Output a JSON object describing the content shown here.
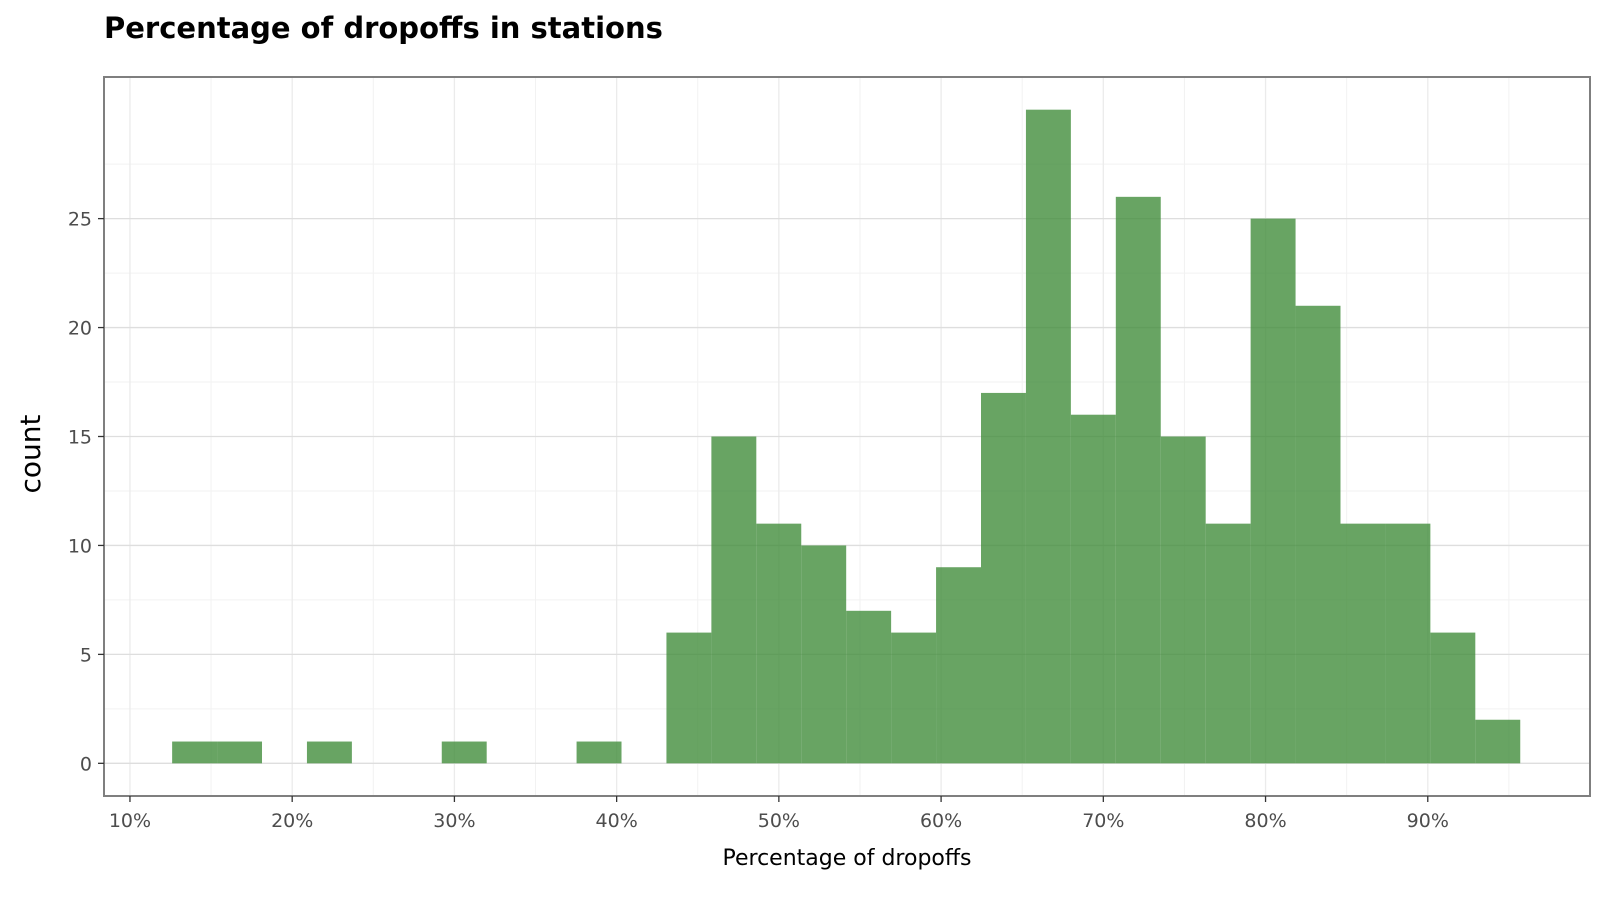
{
  "chart_data": {
    "type": "bar",
    "title": "Percentage of dropoffs in stations",
    "xlabel": "Percentage of dropoffs",
    "ylabel": "count",
    "xlim": [
      8.4,
      100.0
    ],
    "ylim": [
      -1.5,
      31.5
    ],
    "x_ticks": [
      10,
      20,
      30,
      40,
      50,
      60,
      70,
      80,
      90
    ],
    "x_tick_labels": [
      "10%",
      "20%",
      "30%",
      "40%",
      "50%",
      "60%",
      "70%",
      "80%",
      "90%"
    ],
    "y_ticks": [
      0,
      5,
      10,
      15,
      20,
      25
    ],
    "y_tick_labels": [
      "0",
      "5",
      "10",
      "15",
      "20",
      "25"
    ],
    "bin_edges": [
      12.6,
      15.37,
      18.14,
      20.91,
      23.68,
      26.45,
      29.22,
      31.99,
      34.76,
      37.53,
      40.3,
      43.07,
      45.84,
      48.61,
      51.38,
      54.15,
      56.92,
      59.69,
      62.46,
      65.23,
      68.0,
      70.77,
      73.54,
      76.31,
      79.08,
      81.85,
      84.62,
      87.39,
      90.16,
      92.93,
      95.7
    ],
    "counts": [
      1,
      1,
      0,
      1,
      0,
      0,
      1,
      0,
      0,
      1,
      0,
      6,
      15,
      11,
      10,
      7,
      6,
      9,
      17,
      30,
      16,
      26,
      15,
      11,
      25,
      21,
      11,
      11,
      6,
      2
    ],
    "bar_color": "#3d8b37",
    "grid": true,
    "legend": "none"
  }
}
